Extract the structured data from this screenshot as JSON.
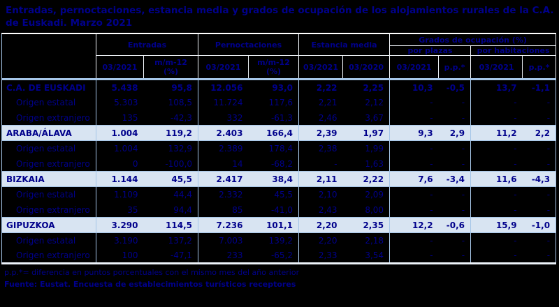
{
  "title": "Entradas, pernoctaciones, estancia media y grados de ocupación de los alojamientos rurales de la C.A. de Euskadi.  Marzo 2021",
  "colors": {
    "text_navy": "#00008B",
    "grid_light_blue": "#A6C6E8",
    "band_bg": "#D8E4F2",
    "page_bg": "#000000"
  },
  "table": {
    "header": {
      "groups": [
        "Entradas",
        "Pernoctaciones",
        "Estancia media",
        "Grados de ocupación (%)"
      ],
      "subgroups": [
        "por plazas",
        "por habitaciones"
      ],
      "columns": [
        "03/2021",
        "m/m-12\n(%)",
        "03/2021",
        "m/m-12\n(%)",
        "03/2021",
        "03/2020",
        "03/2021",
        "p.p.*",
        "03/2021",
        "p.p.*"
      ]
    },
    "rows": [
      {
        "label": "C.A. DE EUSKADI",
        "style": "total",
        "values": [
          "5.438",
          "95,8",
          "12.056",
          "93,0",
          "2,22",
          "2,25",
          "10,3",
          "-0,5",
          "13,7",
          "-1,1"
        ]
      },
      {
        "label": "Origen estatal",
        "style": "sub",
        "values": [
          "5.303",
          "108,5",
          "11.724",
          "117,6",
          "2,21",
          "2,12",
          "-",
          "-",
          "-",
          "-"
        ]
      },
      {
        "label": "Origen extranjero",
        "style": "sub",
        "values": [
          "135",
          "-42,3",
          "332",
          "-61,3",
          "2,46",
          "3,67",
          "-",
          "-",
          "-",
          "-"
        ]
      },
      {
        "label": "ARABA/ÁLAVA",
        "style": "band",
        "values": [
          "1.004",
          "119,2",
          "2.403",
          "166,4",
          "2,39",
          "1,97",
          "9,3",
          "2,9",
          "11,2",
          "2,2"
        ]
      },
      {
        "label": "Origen estatal",
        "style": "sub",
        "values": [
          "1.004",
          "132,9",
          "2.389",
          "178,4",
          "2,38",
          "1,99",
          "-",
          "-",
          "-",
          "-"
        ]
      },
      {
        "label": "Origen extranjero",
        "style": "sub",
        "values": [
          "0",
          "-100,0",
          "14",
          "-68,2",
          "-",
          "1,63",
          "-",
          "-",
          "-",
          "-"
        ]
      },
      {
        "label": "BIZKAIA",
        "style": "band",
        "values": [
          "1.144",
          "45,5",
          "2.417",
          "38,4",
          "2,11",
          "2,22",
          "7,6",
          "-3,4",
          "11,6",
          "-4,3"
        ]
      },
      {
        "label": "Origen estatal",
        "style": "sub",
        "values": [
          "1.109",
          "44,4",
          "2.332",
          "45,5",
          "2,10",
          "2,09",
          "-",
          "-",
          "-",
          "-"
        ]
      },
      {
        "label": "Origen extranjero",
        "style": "sub",
        "values": [
          "35",
          "94,4",
          "85",
          "-41,0",
          "2,43",
          "8,00",
          "-",
          "-",
          "-",
          "-"
        ]
      },
      {
        "label": "GIPUZKOA",
        "style": "band",
        "values": [
          "3.290",
          "114,5",
          "7.236",
          "101,1",
          "2,20",
          "2,35",
          "12,2",
          "-0,6",
          "15,9",
          "-1,0"
        ]
      },
      {
        "label": "Origen estatal",
        "style": "sub",
        "values": [
          "3.190",
          "137,2",
          "7.003",
          "139,2",
          "2,20",
          "2,18",
          "-",
          "-",
          "-",
          "-"
        ]
      },
      {
        "label": "Origen extranjero",
        "style": "sub",
        "values": [
          "100",
          "-47,1",
          "233",
          "-65,2",
          "2,33",
          "3,54",
          "-",
          "-",
          "-",
          "-"
        ]
      }
    ]
  },
  "footer": {
    "note": "p.p.*= diferencia en puntos porcentuales con el mismo mes del año anterior",
    "source": "Fuente: Eustat. Encuesta de establecimientos turísticos receptores"
  }
}
